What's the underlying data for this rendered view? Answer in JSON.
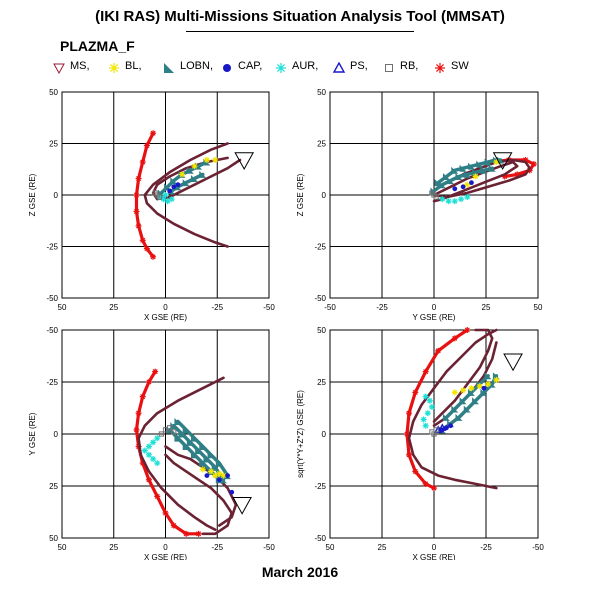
{
  "header": {
    "title": "(IKI RAS) Multi-Missions Situation Analysis Tool (MMSAT)",
    "subtitle": "PLAZMA_F"
  },
  "legend": [
    {
      "label": "MS,",
      "symbol": "down-triangle-icon",
      "color": "#9b1b30"
    },
    {
      "label": "BL,",
      "symbol": "asterisk-icon",
      "color": "#f2e600"
    },
    {
      "label": "LOBN,",
      "symbol": "filled-triangle-icon",
      "color": "#2f7f86"
    },
    {
      "label": "CAP,",
      "symbol": "filled-circle-icon",
      "color": "#1818c8"
    },
    {
      "label": "AUR,",
      "symbol": "asterisk-icon",
      "color": "#1de0d6"
    },
    {
      "label": "PS,",
      "symbol": "up-triangle-icon",
      "color": "#1818c8"
    },
    {
      "label": "RB,",
      "symbol": "square-icon",
      "color": "#707070"
    },
    {
      "label": "SW",
      "symbol": "asterisk-icon",
      "color": "#e81010"
    }
  ],
  "footer": "March 2016",
  "chart_data": [
    {
      "type": "scatter",
      "panel": "top-left",
      "xlabel": "X GSE (RE)",
      "ylabel": "Z GSE (RE)",
      "xlim": [
        50,
        -50
      ],
      "ylim": [
        -50,
        50
      ],
      "xticks": [
        "50",
        "25",
        "0",
        "-25",
        "-50"
      ],
      "yticks": [
        "-50",
        "-25",
        "0",
        "25",
        "50"
      ],
      "grid": true,
      "series": [
        {
          "kind": "SW",
          "color": "#e81010",
          "x": [
            6,
            9,
            11,
            13,
            14,
            14,
            13,
            11,
            9,
            6
          ],
          "y": [
            30,
            24,
            16,
            8,
            0,
            -8,
            -15,
            -22,
            -26,
            -30
          ]
        },
        {
          "kind": "orbit",
          "color": "#6b2233",
          "x": [
            -30,
            -22,
            -12,
            -2,
            6,
            10,
            9,
            4,
            -4,
            -14,
            -24,
            -30
          ],
          "y": [
            25,
            22,
            17,
            11,
            5,
            0,
            -4,
            -9,
            -14,
            -19,
            -23,
            -25
          ]
        },
        {
          "kind": "orbit",
          "color": "#6b2233",
          "x": [
            -30,
            -20,
            -10,
            -2,
            4,
            6,
            4,
            -2,
            -10,
            -20,
            -30,
            -36
          ],
          "y": [
            18,
            16,
            13,
            9,
            5,
            1,
            -2,
            -1,
            3,
            8,
            13,
            17
          ]
        },
        {
          "kind": "LOBN",
          "color": "#2f7f86",
          "x": [
            -20,
            -16,
            -12,
            -8,
            -4,
            -1,
            2
          ],
          "y": [
            16,
            14,
            12,
            10,
            7,
            4,
            1
          ]
        },
        {
          "kind": "LOBN",
          "color": "#2f7f86",
          "x": [
            -18,
            -14,
            -10,
            -6,
            -3
          ],
          "y": [
            10,
            8,
            6,
            4,
            2
          ]
        },
        {
          "kind": "AUR",
          "color": "#1de0d6",
          "x": [
            3,
            1,
            -1,
            -3,
            0
          ],
          "y": [
            -1,
            -2,
            -3,
            -2,
            0
          ]
        },
        {
          "kind": "BL",
          "color": "#f2e600",
          "x": [
            -14,
            -20,
            -24,
            -8
          ],
          "y": [
            14,
            17,
            17,
            10
          ]
        },
        {
          "kind": "CAP",
          "color": "#1818c8",
          "x": [
            -4,
            -6,
            -2
          ],
          "y": [
            4,
            5,
            2
          ]
        },
        {
          "kind": "RB",
          "color": "#707070",
          "x": [
            4,
            5,
            3
          ],
          "y": [
            0,
            1,
            -1
          ]
        },
        {
          "kind": "MS",
          "color": "#9b1b30",
          "x": [
            -38
          ],
          "y": [
            17
          ]
        }
      ]
    },
    {
      "type": "scatter",
      "panel": "top-right",
      "xlabel": "Y GSE (RE)",
      "ylabel": "Z GSE (RE)",
      "xlim": [
        -50,
        50
      ],
      "ylim": [
        -50,
        50
      ],
      "xticks": [
        "-50",
        "-25",
        "0",
        "25",
        "50"
      ],
      "yticks": [
        "-50",
        "-25",
        "0",
        "25",
        "50"
      ],
      "grid": true,
      "series": [
        {
          "kind": "SW",
          "color": "#e81010",
          "x": [
            28,
            36,
            44,
            48,
            46,
            40,
            34
          ],
          "y": [
            16,
            17,
            17,
            15,
            12,
            10,
            9
          ]
        },
        {
          "kind": "orbit",
          "color": "#6b2233",
          "x": [
            0,
            6,
            14,
            22,
            30,
            38,
            44,
            46,
            44,
            36,
            26,
            16,
            6,
            0
          ],
          "y": [
            2,
            6,
            10,
            13,
            16,
            17,
            16,
            13,
            10,
            7,
            4,
            1,
            -1,
            0
          ]
        },
        {
          "kind": "orbit",
          "color": "#6b2233",
          "x": [
            0,
            8,
            16,
            24,
            32,
            38,
            40,
            34,
            24,
            14,
            4,
            0
          ],
          "y": [
            0,
            4,
            8,
            11,
            14,
            16,
            14,
            10,
            6,
            2,
            -2,
            -3
          ]
        },
        {
          "kind": "LOBN",
          "color": "#2f7f86",
          "x": [
            2,
            6,
            10,
            14,
            18,
            22,
            26,
            30,
            32
          ],
          "y": [
            6,
            9,
            12,
            13,
            14,
            15,
            16,
            17,
            17
          ]
        },
        {
          "kind": "LOBN",
          "color": "#2f7f86",
          "x": [
            0,
            4,
            8,
            12,
            16,
            20,
            24,
            28
          ],
          "y": [
            2,
            5,
            7,
            9,
            10,
            11,
            12,
            13
          ]
        },
        {
          "kind": "AUR",
          "color": "#1de0d6",
          "x": [
            4,
            7,
            10,
            13,
            16
          ],
          "y": [
            -2,
            -3,
            -3,
            -2,
            -1
          ]
        },
        {
          "kind": "BL",
          "color": "#f2e600",
          "x": [
            16,
            20,
            30
          ],
          "y": [
            5,
            9,
            16
          ]
        },
        {
          "kind": "CAP",
          "color": "#1818c8",
          "x": [
            10,
            14,
            18
          ],
          "y": [
            3,
            4,
            6
          ]
        },
        {
          "kind": "RB",
          "color": "#707070",
          "x": [
            0,
            -1,
            1
          ],
          "y": [
            0,
            1,
            -1
          ]
        },
        {
          "kind": "MS",
          "color": "#9b1b30",
          "x": [
            33
          ],
          "y": [
            17
          ]
        }
      ]
    },
    {
      "type": "scatter",
      "panel": "bottom-left",
      "xlabel": "X GSE (RE)",
      "ylabel": "Y GSE (RE)",
      "xlim": [
        50,
        -50
      ],
      "ylim": [
        50,
        -50
      ],
      "xticks": [
        "50",
        "25",
        "0",
        "-25",
        "-50"
      ],
      "yticks": [
        "-50",
        "-25",
        "0",
        "25",
        "50"
      ],
      "grid": true,
      "series": [
        {
          "kind": "SW",
          "color": "#e81010",
          "x": [
            5,
            8,
            11,
            13,
            14,
            13,
            11,
            8,
            4,
            0,
            -4,
            -10,
            -16
          ],
          "y": [
            -30,
            -25,
            -18,
            -10,
            -2,
            6,
            14,
            22,
            30,
            38,
            44,
            48,
            48
          ]
        },
        {
          "kind": "orbit",
          "color": "#6b2233",
          "x": [
            -28,
            -18,
            -6,
            4,
            10,
            13,
            12,
            8,
            2,
            -6,
            -14,
            -20,
            -24
          ],
          "y": [
            -27,
            -22,
            -16,
            -10,
            -4,
            2,
            10,
            18,
            26,
            34,
            40,
            44,
            46
          ]
        },
        {
          "kind": "orbit",
          "color": "#6b2233",
          "x": [
            0,
            -4,
            -10,
            -16,
            -22,
            -28,
            -32,
            -30,
            -24,
            -18
          ],
          "y": [
            10,
            14,
            18,
            22,
            26,
            32,
            38,
            44,
            48,
            48
          ]
        },
        {
          "kind": "orbit",
          "color": "#6b2233",
          "x": [
            0,
            -6,
            -12,
            -18,
            -24,
            -30,
            -34,
            -32,
            -26
          ],
          "y": [
            6,
            10,
            12,
            16,
            20,
            26,
            34,
            40,
            44
          ]
        },
        {
          "kind": "LOBN",
          "color": "#2f7f86",
          "x": [
            -2,
            -6,
            -10,
            -14,
            -18,
            -22,
            -26
          ],
          "y": [
            -2,
            2,
            6,
            10,
            14,
            18,
            22
          ]
        },
        {
          "kind": "LOBN",
          "color": "#2f7f86",
          "x": [
            -4,
            -8,
            -12,
            -16,
            -20,
            -24,
            -28
          ],
          "y": [
            -4,
            0,
            4,
            8,
            12,
            16,
            22
          ]
        },
        {
          "kind": "LOBN",
          "color": "#2f7f86",
          "x": [
            -6,
            -10,
            -14,
            -18,
            -22,
            -26,
            -30
          ],
          "y": [
            -6,
            -2,
            2,
            6,
            10,
            14,
            20
          ]
        },
        {
          "kind": "AUR",
          "color": "#1de0d6",
          "x": [
            4,
            6,
            8,
            10,
            8,
            6,
            4
          ],
          "y": [
            2,
            4,
            6,
            8,
            10,
            12,
            14
          ]
        },
        {
          "kind": "BL",
          "color": "#f2e600",
          "x": [
            -18,
            -22,
            -26,
            -28,
            -24
          ],
          "y": [
            17,
            18,
            19,
            20,
            20
          ]
        },
        {
          "kind": "CAP",
          "color": "#1818c8",
          "x": [
            -20,
            -26,
            -30,
            -32
          ],
          "y": [
            20,
            22,
            20,
            28
          ]
        },
        {
          "kind": "RB",
          "color": "#707070",
          "x": [
            0,
            -2,
            -4,
            2
          ],
          "y": [
            -2,
            -3,
            -1,
            0
          ]
        },
        {
          "kind": "MS",
          "color": "#9b1b30",
          "x": [
            -37
          ],
          "y": [
            34
          ]
        }
      ]
    },
    {
      "type": "scatter",
      "panel": "bottom-right",
      "xlabel": "X GSE (RE)",
      "ylabel": "sqrt(Y*Y+Z*Z) GSE (RE)",
      "xlim": [
        50,
        -50
      ],
      "ylim": [
        -50,
        50
      ],
      "xticks": [
        "50",
        "25",
        "0",
        "-25",
        "-50"
      ],
      "yticks": [
        "-50",
        "-25",
        "0",
        "25",
        "50"
      ],
      "grid": true,
      "series": [
        {
          "kind": "SW",
          "color": "#e81010",
          "x": [
            -16,
            -10,
            -2,
            4,
            9,
            12,
            13,
            12,
            9,
            4,
            0
          ],
          "y": [
            50,
            46,
            40,
            30,
            20,
            10,
            0,
            -10,
            -18,
            -24,
            -26
          ]
        },
        {
          "kind": "orbit",
          "color": "#6b2233",
          "x": [
            -30,
            -20,
            -10,
            -2,
            6,
            10,
            12,
            10,
            6,
            0,
            -6,
            -14,
            -20,
            -26,
            -30
          ],
          "y": [
            -26,
            -24,
            -22,
            -20,
            -16,
            -10,
            -2,
            6,
            14,
            22,
            30,
            38,
            44,
            48,
            50
          ]
        },
        {
          "kind": "orbit",
          "color": "#6b2233",
          "x": [
            0,
            -4,
            -10,
            -16,
            -22,
            -26,
            -28,
            -26,
            -20
          ],
          "y": [
            6,
            10,
            16,
            24,
            32,
            40,
            46,
            50,
            50
          ]
        },
        {
          "kind": "orbit",
          "color": "#6b2233",
          "x": [
            0,
            -6,
            -12,
            -18,
            -24,
            -28,
            -30
          ],
          "y": [
            4,
            8,
            14,
            20,
            28,
            36,
            44
          ]
        },
        {
          "kind": "LOBN",
          "color": "#2f7f86",
          "x": [
            -4,
            -8,
            -12,
            -16,
            -20,
            -24,
            -28,
            -30
          ],
          "y": [
            2,
            5,
            8,
            12,
            16,
            20,
            24,
            28
          ]
        },
        {
          "kind": "LOBN",
          "color": "#2f7f86",
          "x": [
            -6,
            -10,
            -14,
            -18,
            -22,
            -26
          ],
          "y": [
            8,
            12,
            16,
            20,
            24,
            28
          ]
        },
        {
          "kind": "AUR",
          "color": "#1de0d6",
          "x": [
            4,
            5,
            3,
            1,
            2,
            4
          ],
          "y": [
            4,
            7,
            10,
            13,
            16,
            18
          ]
        },
        {
          "kind": "BL",
          "color": "#f2e600",
          "x": [
            -10,
            -14,
            -18,
            -22,
            -26,
            -30
          ],
          "y": [
            20,
            21,
            22,
            23,
            24,
            26
          ]
        },
        {
          "kind": "CAP",
          "color": "#1818c8",
          "x": [
            -4,
            -6,
            -8,
            -24
          ],
          "y": [
            2,
            3,
            4,
            22
          ]
        },
        {
          "kind": "PS",
          "color": "#1818c8",
          "x": [
            -2,
            -4
          ],
          "y": [
            2,
            3
          ]
        },
        {
          "kind": "RB",
          "color": "#707070",
          "x": [
            0,
            1,
            -1
          ],
          "y": [
            0,
            1,
            2
          ]
        },
        {
          "kind": "MS",
          "color": "#9b1b30",
          "x": [
            -38
          ],
          "y": [
            35
          ]
        }
      ]
    }
  ]
}
